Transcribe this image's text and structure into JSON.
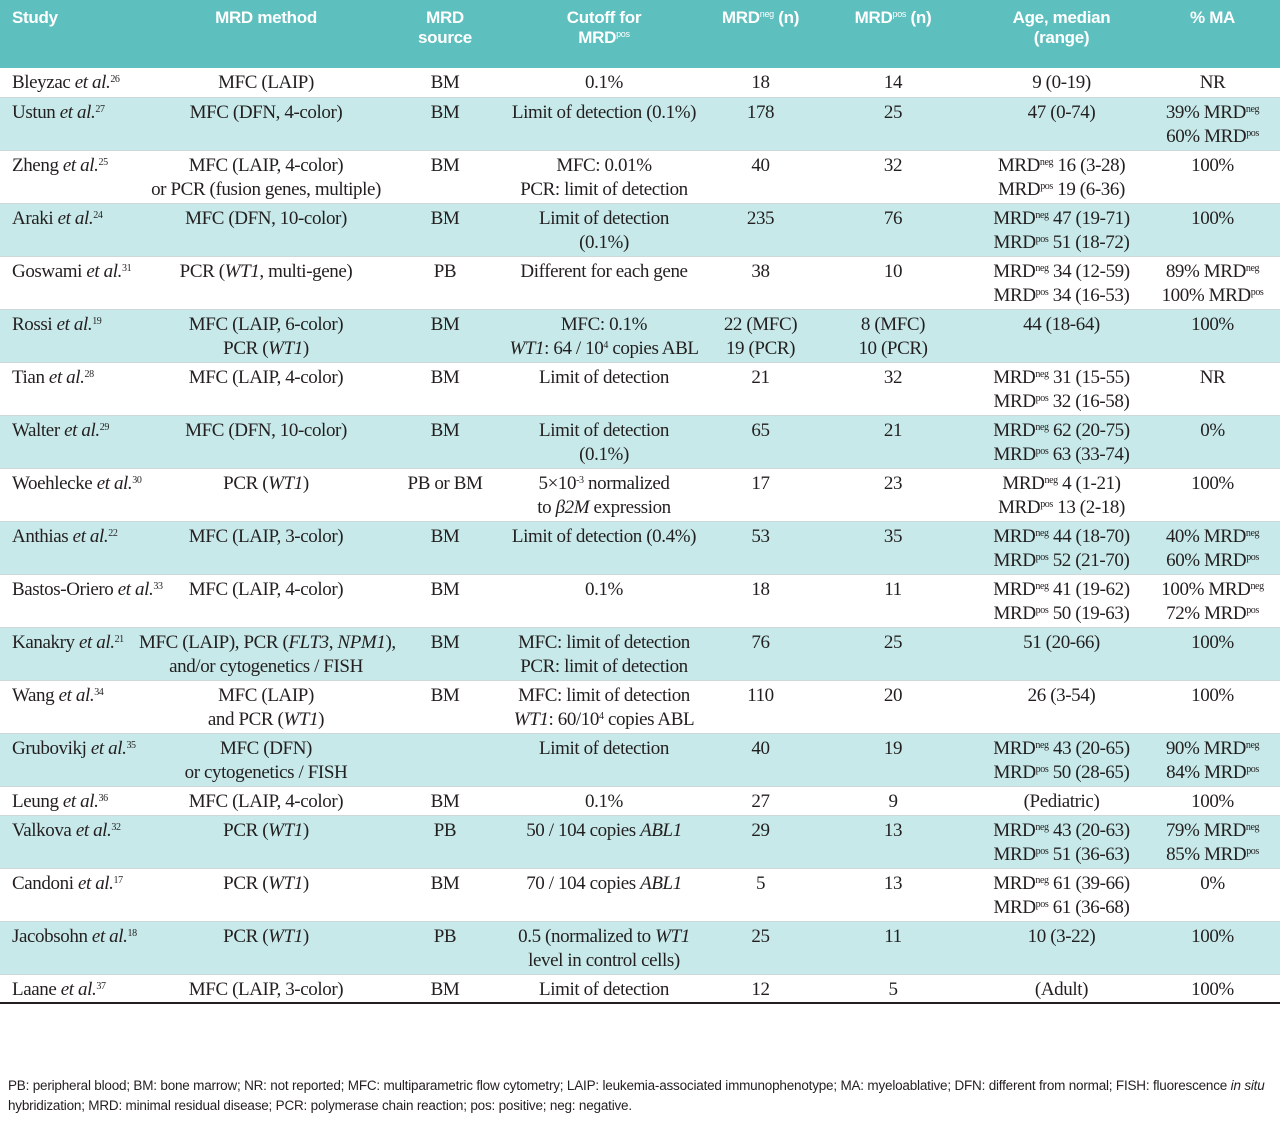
{
  "header": {
    "study": "Study",
    "method": "MRD method",
    "source": "MRD source",
    "cutoff_line1": "Cutoff for",
    "cutoff_line2": "MRD",
    "cutoff_sup": "pos",
    "neg": "MRD",
    "neg_sup": "neg",
    "neg_tail": " (n)",
    "pos": "MRD",
    "pos_sup": "pos",
    "pos_tail": " (n)",
    "age_line1": "Age, median",
    "age_line2": "(range)",
    "ma": "% MA"
  },
  "rows": [
    {
      "author": "Bleyzac ",
      "etal": "et al.",
      "ref": "26",
      "method": [
        "MFC (LAIP)"
      ],
      "source": [
        "BM"
      ],
      "cutoff": [
        "0.1%"
      ],
      "neg": [
        "18"
      ],
      "pos": [
        "14"
      ],
      "age": [
        "9 (0-19)"
      ],
      "ma": [
        "NR"
      ],
      "shade": false,
      "tall": false
    },
    {
      "author": "Ustun ",
      "etal": "et al.",
      "ref": "27",
      "method": [
        "MFC (DFN, 4-color)"
      ],
      "source": [
        "BM"
      ],
      "cutoff": [
        "Limit of detection (0.1%)"
      ],
      "neg": [
        "178"
      ],
      "pos": [
        "25"
      ],
      "age": [
        "47 (0-74)"
      ],
      "ma": [
        "39% MRD^neg",
        "60% MRD^pos"
      ],
      "shade": true,
      "tall": true
    },
    {
      "author": "Zheng ",
      "etal": "et al.",
      "ref": "25",
      "method": [
        "MFC (LAIP, 4-color)",
        "or PCR (fusion genes, multiple)"
      ],
      "source": [
        "BM"
      ],
      "cutoff": [
        "MFC: 0.01%",
        "PCR: limit of detection"
      ],
      "neg": [
        "40"
      ],
      "pos": [
        "32"
      ],
      "age": [
        "MRD^neg 16 (3-28)",
        "MRD^pos 19 (6-36)"
      ],
      "ma": [
        "100%"
      ],
      "shade": false,
      "tall": true
    },
    {
      "author": "Araki ",
      "etal": "et al.",
      "ref": "24",
      "method": [
        "MFC (DFN, 10-color)"
      ],
      "source": [
        "BM"
      ],
      "cutoff": [
        "Limit of detection",
        "(0.1%)"
      ],
      "neg": [
        "235"
      ],
      "pos": [
        "76"
      ],
      "age": [
        "MRD^neg 47 (19-71)",
        "MRD^pos 51 (18-72)"
      ],
      "ma": [
        "100%"
      ],
      "shade": true,
      "tall": true
    },
    {
      "author": "Goswami ",
      "etal": "et al.",
      "ref": "31",
      "method": [
        "PCR (*WT1*, multi-gene)"
      ],
      "source": [
        "PB"
      ],
      "cutoff": [
        "Different for each gene"
      ],
      "neg": [
        "38"
      ],
      "pos": [
        "10"
      ],
      "age": [
        "MRD^neg 34 (12-59)",
        "MRD^pos 34 (16-53)"
      ],
      "ma": [
        "89% MRD^neg",
        "100% MRD^pos"
      ],
      "shade": false,
      "tall": true
    },
    {
      "author": "Rossi ",
      "etal": "et al.",
      "ref": "19",
      "method": [
        "MFC (LAIP, 6-color)",
        "PCR (*WT1*)"
      ],
      "source": [
        "BM"
      ],
      "cutoff": [
        "MFC: 0.1%",
        "*WT1*: 64 / 10^4 copies ABL"
      ],
      "neg": [
        "22 (MFC)",
        "19 (PCR)"
      ],
      "pos": [
        "8 (MFC)",
        "10 (PCR)"
      ],
      "age": [
        "44 (18-64)"
      ],
      "ma": [
        "100%"
      ],
      "shade": true,
      "tall": true
    },
    {
      "author": "Tian ",
      "etal": "et al.",
      "ref": "28",
      "method": [
        "MFC (LAIP, 4-color)"
      ],
      "source": [
        "BM"
      ],
      "cutoff": [
        "Limit of detection"
      ],
      "neg": [
        "21"
      ],
      "pos": [
        "32"
      ],
      "age": [
        "MRD^neg 31 (15-55)",
        "MRD^pos 32 (16-58)"
      ],
      "ma": [
        "NR"
      ],
      "shade": false,
      "tall": true
    },
    {
      "author": "Walter ",
      "etal": "et al.",
      "ref": "29",
      "method": [
        "MFC (DFN, 10-color)"
      ],
      "source": [
        "BM"
      ],
      "cutoff": [
        "Limit of detection",
        "(0.1%)"
      ],
      "neg": [
        "65"
      ],
      "pos": [
        "21"
      ],
      "age": [
        "MRD^neg 62 (20-75)",
        "MRD^pos 63 (33-74)"
      ],
      "ma": [
        "0%"
      ],
      "shade": true,
      "tall": true
    },
    {
      "author": "Woehlecke ",
      "etal": "et al.",
      "ref": "30",
      "method": [
        "PCR (*WT1*)"
      ],
      "source": [
        "PB or BM"
      ],
      "cutoff": [
        "5×10^-3 normalized",
        "to *β2M* expression"
      ],
      "neg": [
        "17"
      ],
      "pos": [
        "23"
      ],
      "age": [
        "MRD^neg 4 (1-21)",
        "MRD^pos 13 (2-18)"
      ],
      "ma": [
        "100%"
      ],
      "shade": false,
      "tall": true
    },
    {
      "author": "Anthias ",
      "etal": "et al.",
      "ref": "22",
      "method": [
        "MFC (LAIP, 3-color)"
      ],
      "source": [
        "BM"
      ],
      "cutoff": [
        "Limit of detection (0.4%)"
      ],
      "neg": [
        "53"
      ],
      "pos": [
        "35"
      ],
      "age": [
        "MRD^neg 44 (18-70)",
        "MRD^pos 52 (21-70)"
      ],
      "ma": [
        "40% MRD^neg",
        "60% MRD^pos"
      ],
      "shade": true,
      "tall": true
    },
    {
      "author": "Bastos-Oriero ",
      "etal": "et al.",
      "ref": "33",
      "method": [
        "MFC (LAIP, 4-color)"
      ],
      "source": [
        "BM"
      ],
      "cutoff": [
        "0.1%"
      ],
      "neg": [
        "18"
      ],
      "pos": [
        "11"
      ],
      "age": [
        "MRD^neg 41 (19-62)",
        "MRD^pos 50 (19-63)"
      ],
      "ma": [
        "100% MRD^neg",
        "72% MRD^pos"
      ],
      "shade": false,
      "tall": true
    },
    {
      "author": "Kanakry ",
      "etal": "et al.",
      "ref": "21",
      "method": [
        "MFC (LAIP), PCR (*FLT3*, *NPM1*),",
        "and/or cytogenetics / FISH"
      ],
      "source": [
        "BM"
      ],
      "cutoff": [
        "MFC: limit of detection",
        "PCR: limit of detection"
      ],
      "neg": [
        "76"
      ],
      "pos": [
        "25"
      ],
      "age": [
        "51 (20-66)"
      ],
      "ma": [
        "100%"
      ],
      "shade": true,
      "tall": true
    },
    {
      "author": "Wang ",
      "etal": "et al.",
      "ref": "34",
      "method": [
        "MFC (LAIP)",
        "and PCR (*WT1*)"
      ],
      "source": [
        "BM"
      ],
      "cutoff": [
        "MFC: limit of detection",
        "*WT1*: 60/10^4 copies ABL"
      ],
      "neg": [
        "110"
      ],
      "pos": [
        "20"
      ],
      "age": [
        "26 (3-54)"
      ],
      "ma": [
        "100%"
      ],
      "shade": false,
      "tall": true
    },
    {
      "author": "Grubovikj ",
      "etal": "et al.",
      "ref": "35",
      "method": [
        "MFC (DFN)",
        "or cytogenetics / FISH"
      ],
      "source": [
        ""
      ],
      "cutoff": [
        "Limit of detection"
      ],
      "neg": [
        "40"
      ],
      "pos": [
        "19"
      ],
      "age": [
        "MRD^neg 43 (20-65)",
        "MRD^pos 50 (28-65)"
      ],
      "ma": [
        "90% MRD^neg",
        "84% MRD^pos"
      ],
      "shade": true,
      "tall": true
    },
    {
      "author": "Leung ",
      "etal": "et al.",
      "ref": "36",
      "method": [
        "MFC (LAIP, 4-color)"
      ],
      "source": [
        "BM"
      ],
      "cutoff": [
        "0.1%"
      ],
      "neg": [
        "27"
      ],
      "pos": [
        "9"
      ],
      "age": [
        "(Pediatric)"
      ],
      "ma": [
        "100%"
      ],
      "shade": false,
      "tall": false
    },
    {
      "author": "Valkova ",
      "etal": "et al.",
      "ref": "32",
      "method": [
        "PCR (*WT1*)"
      ],
      "source": [
        "PB"
      ],
      "cutoff": [
        "50 / 104 copies *ABL1*"
      ],
      "neg": [
        "29"
      ],
      "pos": [
        "13"
      ],
      "age": [
        "MRD^neg 43 (20-63)",
        "MRD^pos 51 (36-63)"
      ],
      "ma": [
        "79% MRD^neg",
        "85% MRD^pos"
      ],
      "shade": true,
      "tall": true
    },
    {
      "author": "Candoni ",
      "etal": "et al.",
      "ref": "17",
      "method": [
        "PCR (*WT1*)"
      ],
      "source": [
        "BM"
      ],
      "cutoff": [
        "70 / 104 copies *ABL1*"
      ],
      "neg": [
        "5"
      ],
      "pos": [
        "13"
      ],
      "age": [
        "MRD^neg 61 (39-66)",
        "MRD^pos 61 (36-68)"
      ],
      "ma": [
        "0%"
      ],
      "shade": false,
      "tall": true
    },
    {
      "author": "Jacobsohn ",
      "etal": "et al.",
      "ref": "18",
      "method": [
        "PCR (*WT1*)"
      ],
      "source": [
        "PB"
      ],
      "cutoff": [
        "0.5 (normalized to *WT1*",
        "level in control cells)"
      ],
      "neg": [
        "25"
      ],
      "pos": [
        "11"
      ],
      "age": [
        "10 (3-22)"
      ],
      "ma": [
        "100%"
      ],
      "shade": true,
      "tall": true
    },
    {
      "author": "Laane ",
      "etal": "et al.",
      "ref": "37",
      "method": [
        "MFC (LAIP, 3-color)"
      ],
      "source": [
        "BM"
      ],
      "cutoff": [
        "Limit of detection"
      ],
      "neg": [
        "12"
      ],
      "pos": [
        "5"
      ],
      "age": [
        "(Adult)"
      ],
      "ma": [
        "100%"
      ],
      "shade": false,
      "tall": false
    }
  ],
  "footnote": [
    {
      "t": "PB: peripheral blood; BM: bone marrow; NR: not reported; MFC: multiparametric flow cytometry; LAIP: leukemia-associated immunophenotype; MA: myeloablative; DFN: different from normal; FISH: fluorescence "
    },
    {
      "t": "in situ",
      "i": true
    },
    {
      "t": " hybridization; MRD: minimal residual disease; PCR: polymerase chain reaction; pos: positive; neg: negative."
    }
  ],
  "colors": {
    "header": "#5dbfbe",
    "stripe": "#c7e9e9"
  }
}
